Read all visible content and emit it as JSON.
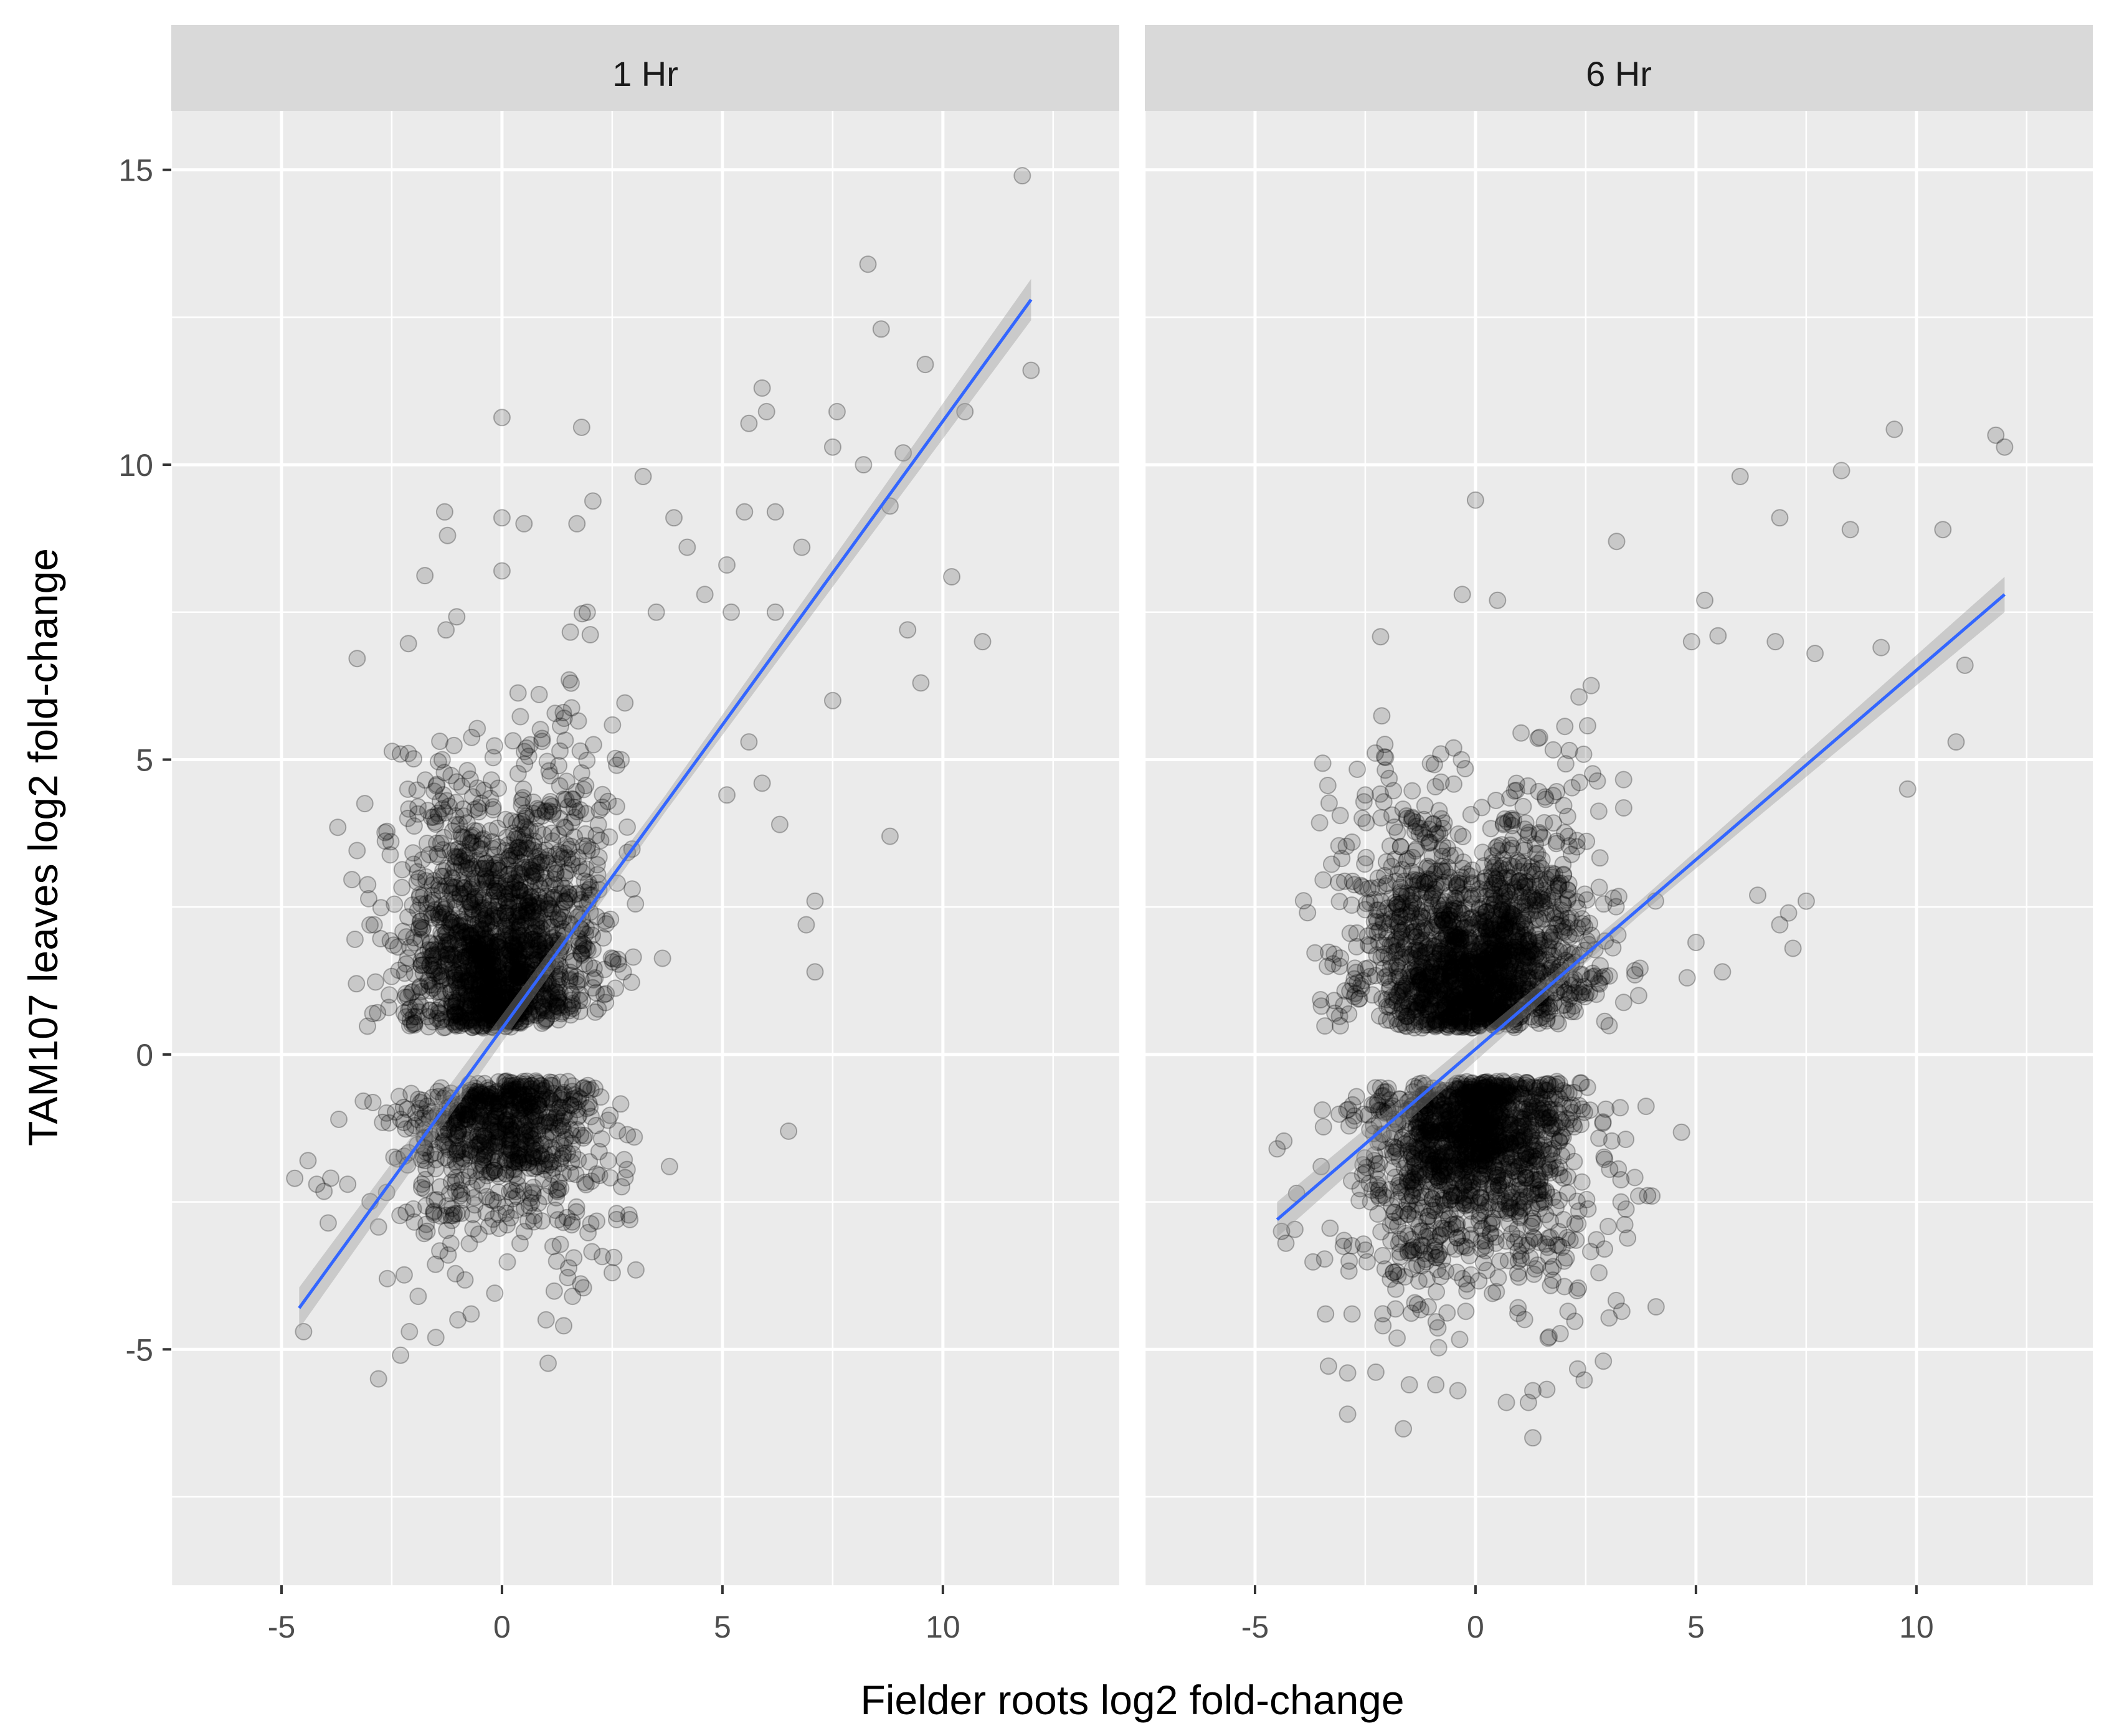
{
  "chart_data": {
    "type": "scatter",
    "xlabel": "Fielder roots log2 fold-change",
    "ylabel": "TAM107 leaves log2 fold-change",
    "xlim": [
      -7.5,
      14
    ],
    "ylim": [
      -9,
      16
    ],
    "x_ticks": [
      -5,
      0,
      5,
      10
    ],
    "y_ticks": [
      -5,
      0,
      5,
      10,
      15
    ],
    "grid": true,
    "colors": {
      "panel": "#ebebeb",
      "strip": "#d9d9d9",
      "grid": "#ffffff",
      "points": "#000000",
      "line": "#3366ff",
      "ribbon": "#999999"
    },
    "panels": [
      {
        "label": "1 Hr",
        "trend": {
          "x": [
            -4.6,
            12
          ],
          "y": [
            -4.3,
            12.8
          ],
          "se_half_width": 0.35
        },
        "cloud": {
          "seed": 7,
          "n_pos": 1700,
          "n_neg": 800,
          "x_sd": 1.1,
          "x_shift": 0.25,
          "y_pos_start": 0.45,
          "y_pos_scale": 1.6,
          "y_neg_start": -0.45,
          "y_neg_scale": 1.0,
          "slope": 0.35,
          "gap": 0.12
        },
        "outliers": [
          [
            11.8,
            14.9
          ],
          [
            12,
            11.6
          ],
          [
            8.3,
            13.4
          ],
          [
            8.6,
            12.3
          ],
          [
            9.6,
            11.7
          ],
          [
            10.5,
            10.9
          ],
          [
            9.1,
            10.2
          ],
          [
            7.5,
            10.3
          ],
          [
            8.2,
            10
          ],
          [
            5.9,
            11.3
          ],
          [
            6,
            10.9
          ],
          [
            7.6,
            10.9
          ],
          [
            5.6,
            10.7
          ],
          [
            8.8,
            9.3
          ],
          [
            10.2,
            8.1
          ],
          [
            9.2,
            7.2
          ],
          [
            10.9,
            7
          ],
          [
            9.5,
            6.3
          ],
          [
            7.5,
            6
          ],
          [
            8.8,
            3.7
          ],
          [
            7.1,
            2.6
          ],
          [
            6.9,
            2.2
          ],
          [
            7.1,
            1.4
          ],
          [
            6.5,
            -1.3
          ],
          [
            0,
            10.8
          ],
          [
            -1.3,
            9.2
          ],
          [
            0,
            9.1
          ],
          [
            0.5,
            9.0
          ],
          [
            1.7,
            9
          ],
          [
            3.2,
            9.8
          ],
          [
            0,
            8.2
          ],
          [
            5.5,
            9.2
          ],
          [
            6.2,
            9.2
          ],
          [
            3.9,
            9.1
          ],
          [
            4.2,
            8.6
          ],
          [
            6.8,
            8.6
          ],
          [
            5.1,
            8.3
          ],
          [
            6.2,
            7.5
          ],
          [
            5.2,
            7.5
          ],
          [
            4.6,
            7.8
          ],
          [
            3.5,
            7.5
          ],
          [
            5.6,
            5.3
          ],
          [
            5.9,
            4.6
          ],
          [
            6.3,
            3.9
          ],
          [
            5.1,
            4.4
          ],
          [
            3,
            -1.4
          ],
          [
            3.8,
            -1.9
          ],
          [
            2.6,
            -2.8
          ],
          [
            2.5,
            -3.7
          ],
          [
            2.9,
            -2.8
          ],
          [
            1.6,
            -4.1
          ],
          [
            1,
            -4.5
          ],
          [
            1.4,
            -4.6
          ],
          [
            -3.3,
            1.2
          ],
          [
            -4.5,
            -4.7
          ],
          [
            -4.7,
            -2.1
          ],
          [
            -4.4,
            -1.8
          ],
          [
            -3.5,
            -2.2
          ],
          [
            -4.2,
            -2.2
          ],
          [
            -3.7,
            -1.1
          ],
          [
            -2.8,
            -5.5
          ],
          [
            -2.3,
            -5.1
          ],
          [
            -2.1,
            -4.7
          ],
          [
            -1.5,
            -4.8
          ],
          [
            -1,
            -4.5
          ],
          [
            -0.7,
            -4.4
          ],
          [
            -2.6,
            -3.8
          ],
          [
            -1.9,
            -4.1
          ]
        ]
      },
      {
        "label": "6 Hr",
        "trend": {
          "x": [
            -4.5,
            12
          ],
          "y": [
            -2.8,
            7.8
          ],
          "se_half_width": 0.3
        },
        "cloud": {
          "seed": 19,
          "n_pos": 1800,
          "n_neg": 1500,
          "x_sd": 1.25,
          "x_shift": 0.2,
          "y_pos_start": 0.45,
          "y_pos_scale": 1.3,
          "y_neg_start": -0.45,
          "y_neg_scale": 1.25,
          "slope": 0.22,
          "gap": 0.12
        },
        "outliers": [
          [
            12,
            10.3
          ],
          [
            11.8,
            10.5
          ],
          [
            9.5,
            10.6
          ],
          [
            8.3,
            9.9
          ],
          [
            8.5,
            8.9
          ],
          [
            10.6,
            8.9
          ],
          [
            6,
            9.8
          ],
          [
            6.9,
            9.1
          ],
          [
            0,
            9.4
          ],
          [
            3.2,
            8.7
          ],
          [
            -0.3,
            7.8
          ],
          [
            0.5,
            7.7
          ],
          [
            5.2,
            7.7
          ],
          [
            5.5,
            7.1
          ],
          [
            6.8,
            7
          ],
          [
            4.9,
            7.0
          ],
          [
            7.7,
            6.8
          ],
          [
            9.2,
            6.9
          ],
          [
            9.8,
            4.5
          ],
          [
            10.9,
            5.3
          ],
          [
            11.1,
            6.6
          ],
          [
            7.5,
            2.6
          ],
          [
            7.2,
            1.8
          ],
          [
            6.9,
            2.2
          ],
          [
            5,
            1.9
          ],
          [
            7.1,
            2.4
          ],
          [
            6.4,
            2.7
          ],
          [
            5.6,
            1.4
          ],
          [
            4.8,
            1.3
          ],
          [
            3.7,
            1.0
          ],
          [
            -4.5,
            -1.6
          ],
          [
            -4.4,
            -3.0
          ],
          [
            -4.3,
            -3.2
          ],
          [
            -3.4,
            -4.4
          ],
          [
            -2.8,
            -4.4
          ],
          [
            -2.1,
            -4.6
          ],
          [
            -3.5,
            -1.9
          ],
          [
            -2.9,
            -6.1
          ],
          [
            -2.9,
            -5.4
          ],
          [
            -1.5,
            -5.6
          ],
          [
            -0.9,
            -5.6
          ],
          [
            -0.4,
            -5.7
          ],
          [
            1.3,
            -6.5
          ],
          [
            1.2,
            -5.9
          ],
          [
            1.3,
            -5.7
          ],
          [
            0.7,
            -5.9
          ],
          [
            2.9,
            -5.2
          ],
          [
            2.8,
            -3.7
          ],
          [
            3.7,
            -2.4
          ],
          [
            3.3,
            -2.5
          ],
          [
            4.0,
            -2.4
          ],
          [
            -3.2,
            1.7
          ],
          [
            -2.8,
            3.6
          ],
          [
            -2.5,
            4.4
          ]
        ]
      }
    ]
  }
}
